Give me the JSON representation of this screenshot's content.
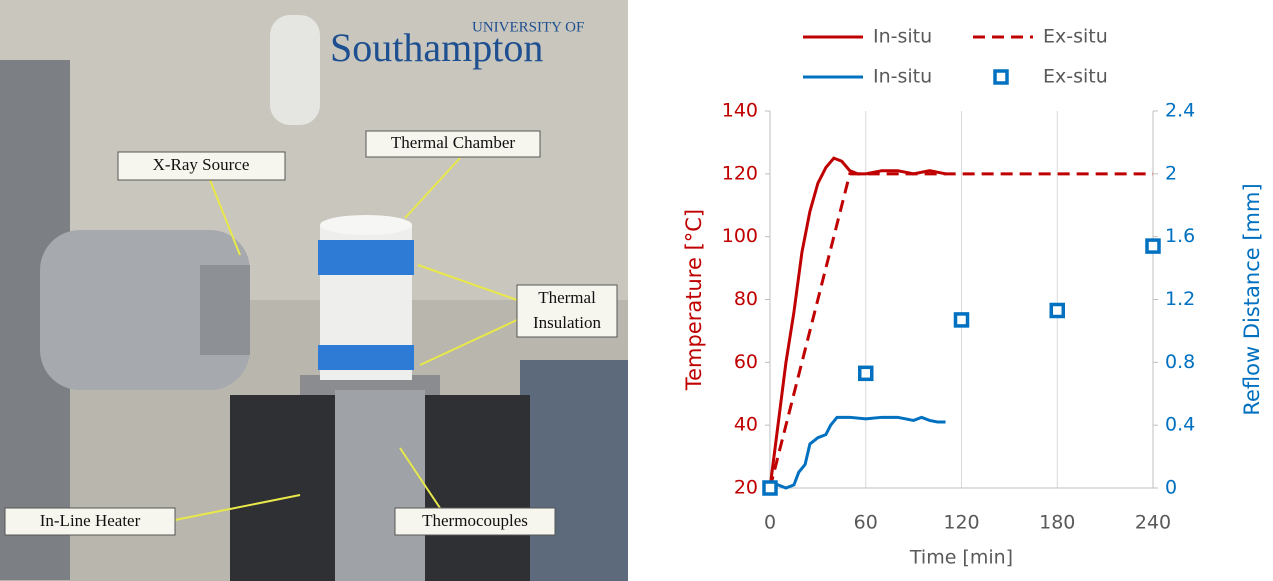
{
  "photo": {
    "logo": {
      "small": "UNIVERSITY OF",
      "large": "Southampton"
    },
    "labels": {
      "xray": "X-Ray Source",
      "chamber": "Thermal Chamber",
      "insulation": [
        "Thermal",
        "Insulation"
      ],
      "heater": "In-Line Heater",
      "thermocouples": "Thermocouples"
    }
  },
  "chart_data": {
    "type": "line",
    "xlabel": "Time [min]",
    "ylabel": "Temperature [°C]",
    "y2label": "Reflow Distance [mm]",
    "ycolor": "#c00000",
    "y2color": "#0070c0",
    "xlim": [
      0,
      240
    ],
    "xticks": [
      0,
      60,
      120,
      180,
      240
    ],
    "ylim": [
      20,
      140
    ],
    "yticks": [
      20,
      40,
      60,
      80,
      100,
      120,
      140
    ],
    "y2lim": [
      0,
      2.4
    ],
    "y2ticks": [
      0,
      0.4,
      0.8,
      1.2,
      1.6,
      2,
      2.4
    ],
    "grid": "x",
    "series": [
      {
        "name": "In-situ",
        "type": "line",
        "color": "#c00000",
        "dash": false,
        "x": [
          0,
          5,
          10,
          15,
          20,
          25,
          30,
          35,
          40,
          45,
          50,
          55,
          60,
          70,
          80,
          90,
          100,
          110
        ],
        "values": [
          20,
          40,
          60,
          76,
          95,
          108,
          117,
          122,
          125,
          124,
          121,
          120,
          120,
          121,
          121,
          120,
          121,
          120
        ]
      },
      {
        "name": "Ex-situ",
        "type": "line",
        "color": "#c00000",
        "dash": true,
        "x": [
          0,
          50,
          240
        ],
        "values": [
          20,
          120,
          120
        ]
      },
      {
        "name": "In-situ",
        "type": "line",
        "color": "#0070c0",
        "dash": false,
        "axis": "y2",
        "x": [
          0,
          5,
          10,
          15,
          18,
          22,
          25,
          30,
          35,
          38,
          42,
          50,
          60,
          70,
          80,
          90,
          95,
          100,
          105,
          110
        ],
        "values": [
          0,
          0.02,
          0,
          0.02,
          0.1,
          0.15,
          0.28,
          0.32,
          0.34,
          0.4,
          0.45,
          0.45,
          0.44,
          0.45,
          0.45,
          0.43,
          0.45,
          0.43,
          0.42,
          0.42
        ]
      },
      {
        "name": "Ex-situ",
        "type": "scatter",
        "color": "#0070c0",
        "axis": "y2",
        "x": [
          0,
          60,
          120,
          180,
          240
        ],
        "values": [
          0,
          0.73,
          1.07,
          1.13,
          1.54
        ]
      }
    ]
  }
}
